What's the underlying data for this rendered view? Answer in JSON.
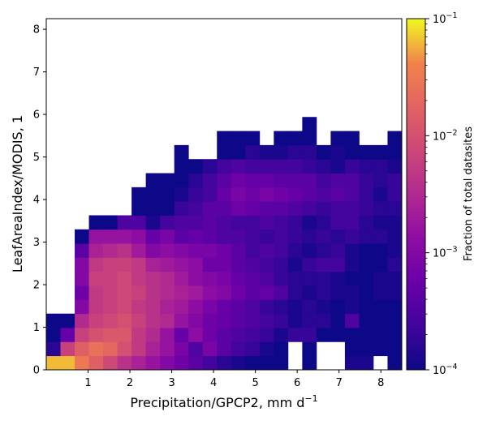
{
  "chart_data": {
    "type": "heatmap",
    "xlabel_main": "Precipitation/GPCP2,  mm d",
    "xlabel_sup": "−1",
    "ylabel": "LeafAreaIndex/MODIS,  1",
    "colorbar_label": "Fraction of total datasites",
    "colormap": "plasma",
    "color_scale": "log",
    "color_range": [
      0.0001,
      0.1
    ],
    "xlim": [
      0.0,
      8.5
    ],
    "ylim": [
      0.0,
      8.25
    ],
    "x_ticks": [
      1,
      2,
      3,
      4,
      5,
      6,
      7,
      8
    ],
    "y_ticks": [
      0,
      1,
      2,
      3,
      4,
      5,
      6,
      7,
      8
    ],
    "colorbar_ticks": [
      {
        "value": 0.1,
        "base": "10",
        "exp": "−1"
      },
      {
        "value": 0.01,
        "base": "10",
        "exp": "−2"
      },
      {
        "value": 0.001,
        "base": "10",
        "exp": "−3"
      },
      {
        "value": 0.0001,
        "base": "10",
        "exp": "−4"
      }
    ],
    "bin_size_x": 0.34,
    "bin_size_y": 0.33,
    "bins_x": 25,
    "bins_y": 18,
    "log10_fraction_rows_from_y0": [
      "-1.2 -1.2 -1.5 -1.8 -2.1 -2.4 -2.6 -2.8 -3.0 -3.2 -3.4 -3.6 -3.8 -3.9 -4.0 -4.0 -4.0 . -4.0 . . -3.9 -3.9 . -4.0",
      "-3.8 -2.2 -1.8 -1.6 -1.7 -2.0 -2.3 -2.6 -2.8 -3.1 -3.5 -3.1 -3.4 -3.6 -3.7 -3.9 -4.0 . -4.0 . . -4.0 -4.0 -4.0 -4.0",
      "-4.0 -3.3 -2.2 -2.0 -1.9 -1.9 -2.3 -2.5 -2.8 -3.3 -2.9 -3.2 -3.4 -3.5 -3.6 -3.7 -3.9 -3.7 -3.7 -4.0 -4.0 -4.0 -4.0 -4.0 -4.0",
      "-4.0 -4.0 -2.5 -2.2 -2.1 -2.0 -2.2 -2.4 -2.5 -2.8 -3.0 -3.2 -3.3 -3.4 -3.5 -3.6 -3.7 -3.9 -3.8 -3.8 -4.0 -3.5 -4.0 -4.0 -4.0",
      ". . -3.0 -2.3 -2.2 -2.1 -2.3 -2.4 -2.6 -2.7 -2.9 -3.1 -3.3 -3.4 -3.5 -3.7 -3.8 -3.9 -3.8 -3.9 -4.0 -3.9 -4.0 -4.0 -4.0",
      ". . -3.2 -2.3 -2.2 -2.1 -2.2 -2.4 -2.5 -2.6 -2.7 -2.9 -3.0 -3.2 -3.4 -3.3 -3.5 -3.8 -3.9 -3.8 -3.9 -3.9 -4.0 -3.9 -3.9",
      ". . -3.0 -2.2 -2.2 -2.1 -2.3 -2.4 -2.5 -2.7 -2.9 -3.0 -3.1 -3.3 -3.4 -3.5 -3.7 -3.8 -3.8 -3.8 -3.9 -4.0 -4.0 -3.9 -3.9",
      ". . -3.0 -2.3 -2.2 -2.2 -2.3 -2.6 -2.7 -2.8 -2.9 -3.2 -3.2 -3.4 -3.5 -3.6 -3.7 -3.9 -3.7 -3.6 -3.6 -3.9 -4.0 -4.0 -3.8",
      ". . -3.4 -2.6 -2.5 -2.4 -2.7 -3.0 -2.9 -3.0 -3.1 -3.1 -3.2 -3.4 -3.6 -3.5 -3.6 -3.8 -3.9 -3.8 -3.7 -3.9 -4.0 -4.0 -3.9",
      ". . -4.0 -2.8 -2.8 -2.8 -2.9 -3.3 -3.1 -3.4 -3.3 -3.4 -3.5 -3.5 -3.6 -3.7 -3.6 -3.7 -3.8 -3.7 -3.8 -3.7 -3.8 -3.8 -3.9",
      ". . . -4.0 -4.0 -3.5 -3.5 -3.9 -3.6 -3.5 -3.5 -3.4 -3.5 -3.6 -3.6 -3.5 -3.6 -3.7 -3.9 -3.8 -3.6 -3.6 -3.8 -3.9 -3.9",
      ". . . . . . -4.0 -4.0 -4.0 -3.7 -3.6 -3.4 -3.4 -3.2 -3.3 -3.4 -3.4 -3.5 -3.6 -3.7 -3.6 -3.6 -3.7 -3.8 -3.8",
      ". . . . . . -4.0 -4.0 -4.0 -3.9 -3.7 -3.6 -3.3 -3.1 -3.2 -3.1 -3.2 -3.3 -3.4 -3.5 -3.4 -3.5 -3.7 -3.9 -3.7",
      ". . . . . . . -4.0 -4.0 -4.0 -3.8 -3.6 -3.4 -3.2 -3.3 -3.3 -3.4 -3.4 -3.4 -3.6 -3.5 -3.5 -3.7 -3.8 -3.7",
      ". . . . . . . . . -4.0 -4.0 -3.8 -3.6 -3.5 -3.6 -3.6 -3.6 -3.6 -3.7 -3.8 -3.9 -3.7 -3.8 -3.8 -3.9",
      ". . . . . . . . . -4.0 . . -4.0 -4.0 -3.8 -3.9 -3.9 -3.8 -3.8 -4.0 -3.9 -4.0 -4.0 -4.0 -4.0",
      ". . . . . . . . . . . . -4.0 -4.0 -4.0 . -4.0 -4.0 -4.0 . -4.0 -4.0 . . -4.0",
      ". . . . . . . . . . . . . . . . . . -4.0 . . . . . ."
    ]
  }
}
